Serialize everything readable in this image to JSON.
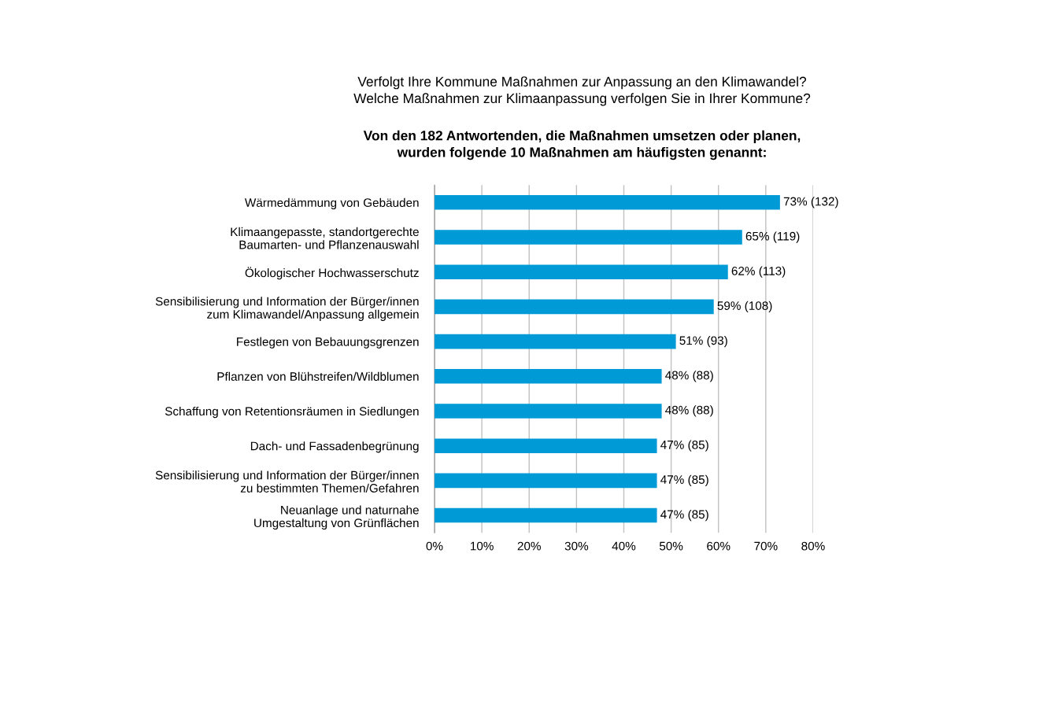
{
  "chart_data": {
    "type": "bar",
    "orientation": "horizontal",
    "title": "Verfolgt Ihre Kommune Maßnahmen zur Anpassung an den Klimawandel?\nWelche Maßnahmen zur Klimaanpassung verfolgen Sie in Ihrer Kommune?",
    "subtitle": "Von den 182 Antwortenden, die Maßnahmen umsetzen oder planen,\nwurden folgende 10 Maßnahmen am häufigsten genannt:",
    "categories": [
      "Wärmedämmung von Gebäuden",
      "Klimaangepasste, standortgerechte\nBaumarten- und Pflanzenauswahl",
      "Ökologischer Hochwasserschutz",
      "Sensibilisierung und Information der Bürger/innen\nzum Klimawandel/Anpassung allgemein",
      "Festlegen von Bebauungsgrenzen",
      "Pflanzen von Blühstreifen/Wildblumen",
      "Schaffung von Retentionsräumen in Siedlungen",
      "Dach- und Fassadenbegrünung",
      "Sensibilisierung und Information der Bürger/innen\nzu bestimmten Themen/Gefahren",
      "Neuanlage und naturnahe\nUmgestaltung von Grünflächen"
    ],
    "values": [
      73,
      65,
      62,
      59,
      51,
      48,
      48,
      47,
      47,
      47
    ],
    "value_labels": [
      "73% (132)",
      "65% (119)",
      "62% (113)",
      "59% (108)",
      "51% (93)",
      "48% (88)",
      "48% (88)",
      "47% (85)",
      "47% (85)",
      "47% (85)"
    ],
    "color": "#009bd7",
    "xlim": [
      0,
      80
    ],
    "xticks": [
      {
        "value": 0,
        "label": "0%"
      },
      {
        "value": 10,
        "label": "10%"
      },
      {
        "value": 20,
        "label": "20%"
      },
      {
        "value": 30,
        "label": "30%"
      },
      {
        "value": 40,
        "label": "40%"
      },
      {
        "value": 50,
        "label": "50%"
      },
      {
        "value": 60,
        "label": "60%"
      },
      {
        "value": 70,
        "label": "70%"
      },
      {
        "value": 80,
        "label": "80%"
      }
    ],
    "grid": "x",
    "legend": false
  }
}
